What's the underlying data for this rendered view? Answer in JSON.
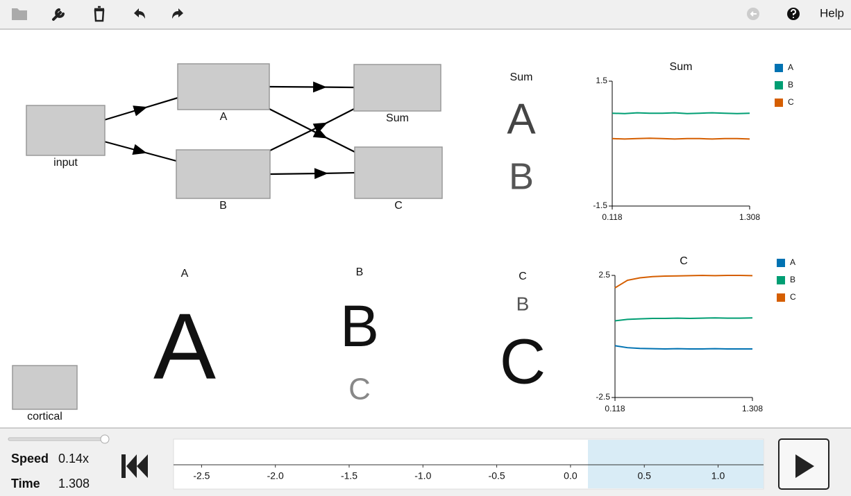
{
  "toolbar": {
    "help": "Help"
  },
  "network": {
    "nodes": [
      {
        "label": "input"
      },
      {
        "label": "A"
      },
      {
        "label": "B"
      },
      {
        "label": "Sum"
      },
      {
        "label": "C"
      },
      {
        "label": "cortical"
      }
    ]
  },
  "displays": [
    {
      "title": "Sum",
      "items": [
        "A",
        "B"
      ]
    },
    {
      "title": "A",
      "items": [
        "A"
      ]
    },
    {
      "title": "B",
      "items": [
        "B",
        "C"
      ]
    },
    {
      "title": "C",
      "items": [
        "B",
        "C"
      ]
    }
  ],
  "plots": [
    {
      "type": "line",
      "title": "Sum",
      "x": [
        0.118,
        0.226,
        0.334,
        0.443,
        0.551,
        0.659,
        0.767,
        0.875,
        0.984,
        1.092,
        1.2,
        1.308
      ],
      "xlim": [
        0.118,
        1.308
      ],
      "xticks": [
        0.118,
        1.308
      ],
      "ylim": [
        -1.5,
        1.5
      ],
      "yticks": [
        1.5,
        -1.5
      ],
      "series": [
        {
          "name": "A",
          "color": "#0072b2",
          "values": [
            null,
            null,
            null,
            null,
            null,
            null,
            null,
            null,
            null,
            null,
            null,
            null
          ]
        },
        {
          "name": "B",
          "color": "#009e73",
          "values": [
            0.73,
            0.72,
            0.74,
            0.73,
            0.73,
            0.74,
            0.72,
            0.73,
            0.74,
            0.73,
            0.72,
            0.73
          ]
        },
        {
          "name": "C",
          "color": "#d55e00",
          "values": [
            0.12,
            0.11,
            0.12,
            0.13,
            0.12,
            0.11,
            0.12,
            0.12,
            0.11,
            0.12,
            0.12,
            0.11
          ]
        }
      ]
    },
    {
      "type": "line",
      "title": "C",
      "x": [
        0.118,
        0.226,
        0.334,
        0.443,
        0.551,
        0.659,
        0.767,
        0.875,
        0.984,
        1.092,
        1.2,
        1.308
      ],
      "xlim": [
        0.118,
        1.308
      ],
      "xticks": [
        0.118,
        1.308
      ],
      "ylim": [
        -2.5,
        2.5
      ],
      "yticks": [
        2.5,
        -2.5
      ],
      "series": [
        {
          "name": "A",
          "color": "#0072b2",
          "values": [
            -0.38,
            -0.46,
            -0.49,
            -0.5,
            -0.51,
            -0.5,
            -0.51,
            -0.51,
            -0.5,
            -0.51,
            -0.51,
            -0.51
          ]
        },
        {
          "name": "B",
          "color": "#009e73",
          "values": [
            0.64,
            0.7,
            0.72,
            0.74,
            0.74,
            0.75,
            0.74,
            0.75,
            0.76,
            0.75,
            0.75,
            0.76
          ]
        },
        {
          "name": "C",
          "color": "#d55e00",
          "values": [
            1.99,
            2.3,
            2.4,
            2.45,
            2.47,
            2.48,
            2.49,
            2.5,
            2.49,
            2.5,
            2.5,
            2.49
          ]
        }
      ]
    }
  ],
  "controls": {
    "speed_label": "Speed",
    "speed": "0.14x",
    "time_label": "Time",
    "time": 1.308
  },
  "timeline": {
    "xlim": [
      -2.69,
      1.308
    ],
    "window": [
      0.118,
      1.308
    ],
    "ticks": [
      {
        "value": -2.5,
        "label": "-2.5"
      },
      {
        "value": -2.0,
        "label": "-2.0"
      },
      {
        "value": -1.5,
        "label": "-1.5"
      },
      {
        "value": -1.0,
        "label": "-1.0"
      },
      {
        "value": -0.5,
        "label": "-0.5"
      },
      {
        "value": 0.0,
        "label": "0.0"
      },
      {
        "value": 0.5,
        "label": "0.5"
      },
      {
        "value": 1.0,
        "label": "1.0"
      }
    ]
  }
}
